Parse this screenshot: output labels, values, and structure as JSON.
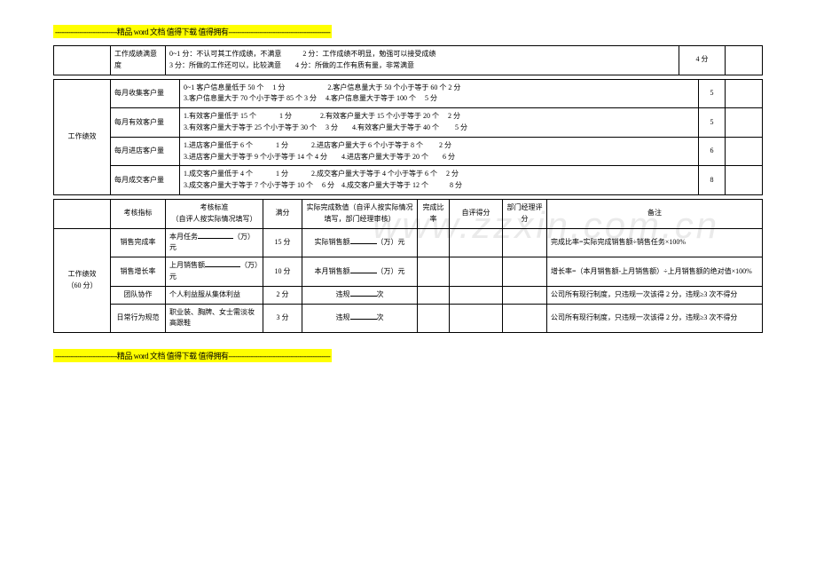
{
  "banner_top": "----------------------------精品 word 文档  值得下载  值得拥有----------------------------------------------",
  "banner_bottom": "----------------------------精品 word 文档  值得下载  值得拥有----------------------------------------------",
  "watermark": "www.zzxin.com.cn",
  "table1": {
    "r0c0": "工作成绩满意度",
    "r0c1": "0~1 分：不认可其工作成绩，不满意　　　2 分：工作成绩不明显，勉强可以接受成绩\n3 分：所做的工作还可以，比较满意　　4 分：所做的工作有质有量，非常满意",
    "r0c2": "4 分",
    "r0c3": ""
  },
  "table2": {
    "col0": "工作绩效",
    "rows": [
      {
        "label": "每月收集客户量",
        "desc": "0~1 客户信息量低于 50 个　 1 分　　　　　　2.客户信息量大于 50 个小于等于 60 个  2 分\n3.客户信息量大于 70 个小于等于 85 个  3 分　 4.客户信息量大于等于 100 个　 5 分",
        "full": "5",
        "tail": ""
      },
      {
        "label": "每月有效客户量",
        "desc": "1.有效客户量低于 15 个　　　 1 分　　　　2.有效客户量大于 15 个小于等于 20 个　 2 分\n3.有效客户量大于等于 25 个小于等于 30 个　 3 分　　4.有效客户量大于等于 40 个　 　5 分",
        "full": "5",
        "tail": ""
      },
      {
        "label": "每月进店客户量",
        "desc": "1.进店客户量低于 6 个　　　 1 分　　　 2.进店客户量大于 6 个小于等于 8 个　　 2 分\n3.进店客户量大于等于 9 个小于等于 14 个  4 分　　4.进店客户量大于等于 20 个　　6 分",
        "full": "6",
        "tail": ""
      },
      {
        "label": "每月成交客户量",
        "desc": "1.成交客户量低于 4 个　　　 1 分　　　 2.成交客户量大于等于 4 个小于等于 6 个　 2 分\n3.成交客户量大于等于 7 个小于等于 10 个　 6 分　4.成交客户量大于等于 12 个　　　8 分",
        "full": "8",
        "tail": ""
      }
    ]
  },
  "table3": {
    "header": [
      "",
      "考核指标",
      "考核标准\n（自评人按实际情况填写）",
      "满分",
      "实际完成数值（自评人按实际情况填写，部门经理审核）",
      "完成比率",
      "自评得分",
      "部门经理评分",
      "备注"
    ],
    "col0": "工作绩效\n（60 分）",
    "rows": [
      {
        "c1": "销售完成率",
        "c2a": "本月任务",
        "c2b": "（万）元",
        "c3": "15 分",
        "c4a": "实际销售额",
        "c4b": "（万）元",
        "c5": "",
        "c6": "",
        "c7": "",
        "c8": "完成比率=实际完成销售额÷销售任务×100%"
      },
      {
        "c1": "销售增长率",
        "c2a": "上月销售额",
        "c2b": "（万）元",
        "c3": "10 分",
        "c4a": "本月销售额",
        "c4b": "（万）元",
        "c5": "",
        "c6": "",
        "c7": "",
        "c8": "增长率=（本月销售额-上月销售额）÷上月销售额的绝对值×100%"
      },
      {
        "c1": "团队协作",
        "c2full": "个人利益服从集体利益",
        "c3": "2 分",
        "c4a": "违规",
        "c4b": "次",
        "c5": "",
        "c6": "",
        "c7": "",
        "c8": "公司所有现行制度，只违规一次该得 2 分，违规≥3 次不得分"
      },
      {
        "c1": "日常行为规范",
        "c2full": "职业装、胸牌、女士需淡妆高跟鞋",
        "c3": "3 分",
        "c4a": "违规",
        "c4b": "次",
        "c5": "",
        "c6": "",
        "c7": "",
        "c8": "公司所有现行制度，只违规一次该得 2 分，违规≥3 次不得分"
      }
    ]
  }
}
